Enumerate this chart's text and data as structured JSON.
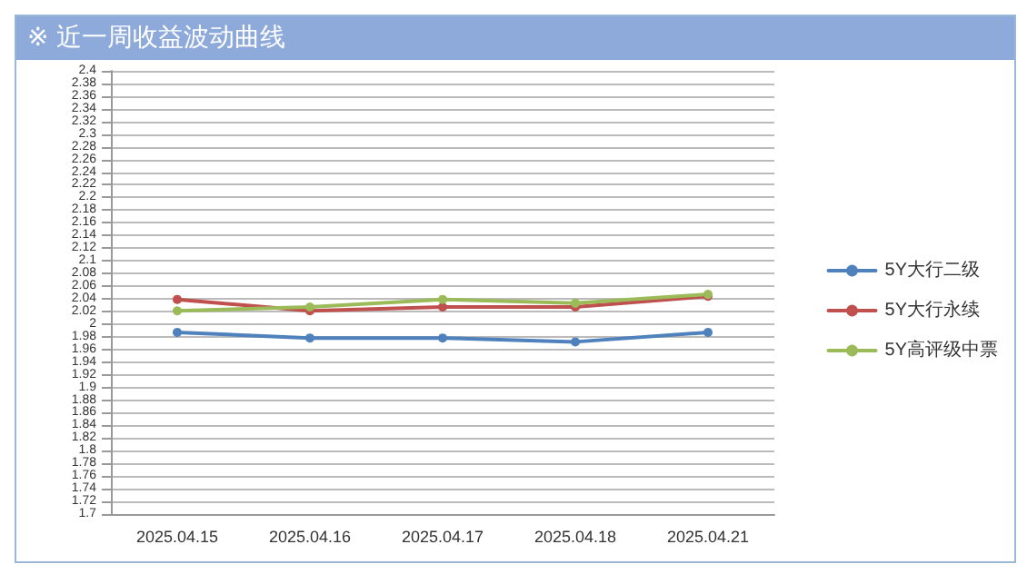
{
  "chart_data": {
    "type": "line",
    "title": "※ 近一周收益波动曲线",
    "categories": [
      "2025.04.15",
      "2025.04.16",
      "2025.04.17",
      "2025.04.18",
      "2025.04.21"
    ],
    "series": [
      {
        "name": "5Y大行二级",
        "color": "#4f81bd",
        "values": [
          1.987,
          1.978,
          1.978,
          1.972,
          1.987
        ]
      },
      {
        "name": "5Y大行永续",
        "color": "#c0504d",
        "values": [
          2.039,
          2.021,
          2.027,
          2.027,
          2.044
        ]
      },
      {
        "name": "5Y高评级中票",
        "color": "#9bbb59",
        "values": [
          2.021,
          2.027,
          2.039,
          2.033,
          2.047
        ]
      }
    ],
    "ylim": [
      1.7,
      2.4
    ],
    "yticks": [
      1.7,
      1.72,
      1.74,
      1.76,
      1.78,
      1.8,
      1.82,
      1.84,
      1.86,
      1.88,
      1.9,
      1.92,
      1.94,
      1.96,
      1.98,
      2,
      2.02,
      2.04,
      2.06,
      2.08,
      2.1,
      2.12,
      2.14,
      2.16,
      2.18,
      2.2,
      2.22,
      2.24,
      2.26,
      2.28,
      2.3,
      2.32,
      2.34,
      2.36,
      2.38,
      2.4
    ],
    "grid": "y",
    "legend": "right",
    "marker": "circle",
    "line_style": "solid"
  }
}
